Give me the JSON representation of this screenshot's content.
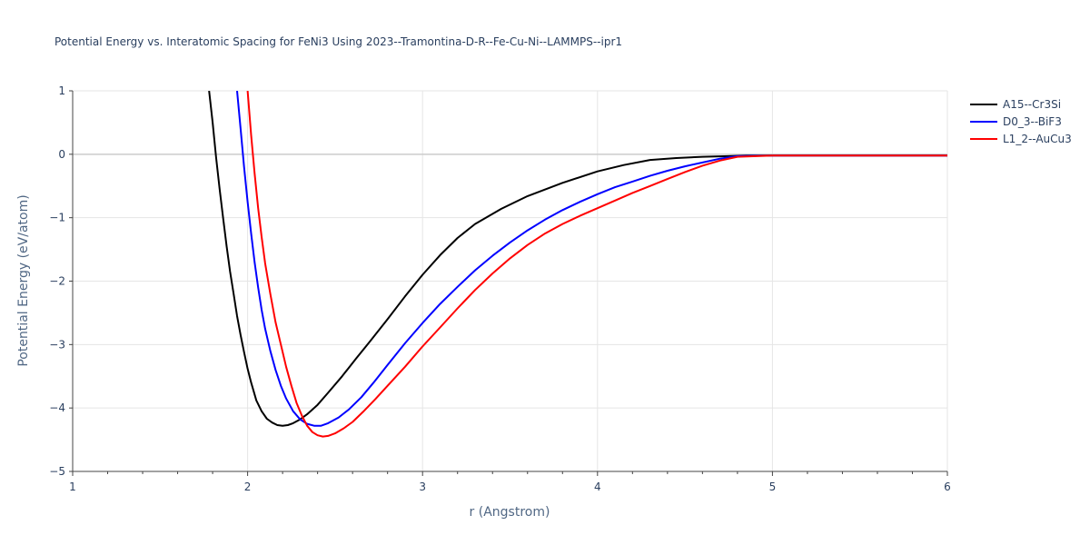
{
  "chart_data": {
    "type": "line",
    "title": "Potential Energy vs. Interatomic Spacing for FeNi3 Using 2023--Tramontina-D-R--Fe-Cu-Ni--LAMMPS--ipr1",
    "xlabel": "r (Angstrom)",
    "ylabel": "Potential Energy (eV/atom)",
    "xlim": [
      1,
      6
    ],
    "ylim": [
      -5,
      1
    ],
    "xticks": [
      1,
      2,
      3,
      4,
      5,
      6
    ],
    "xtick_labels": [
      "1",
      "2",
      "3",
      "4",
      "5",
      "6"
    ],
    "yticks": [
      -5,
      -4,
      -3,
      -2,
      -1,
      0,
      1
    ],
    "ytick_labels": [
      "−5",
      "−4",
      "−3",
      "−2",
      "−1",
      "0",
      "1"
    ],
    "grid": true,
    "legend_position": "top-right",
    "series": [
      {
        "name": "A15--Cr3Si",
        "color": "#000000",
        "x": [
          1.78,
          1.8,
          1.82,
          1.84,
          1.86,
          1.88,
          1.9,
          1.92,
          1.94,
          1.96,
          1.98,
          2.0,
          2.02,
          2.05,
          2.08,
          2.11,
          2.14,
          2.17,
          2.2,
          2.23,
          2.26,
          2.3,
          2.34,
          2.4,
          2.46,
          2.54,
          2.62,
          2.7,
          2.8,
          2.9,
          3.0,
          3.1,
          3.2,
          3.3,
          3.45,
          3.6,
          3.8,
          4.0,
          4.15,
          4.3,
          4.45,
          4.6,
          4.75,
          4.85,
          5.0,
          5.3,
          5.6,
          6.0
        ],
        "y": [
          1.0,
          0.5,
          -0.05,
          -0.55,
          -1.0,
          -1.45,
          -1.85,
          -2.2,
          -2.55,
          -2.85,
          -3.12,
          -3.38,
          -3.6,
          -3.88,
          -4.05,
          -4.17,
          -4.23,
          -4.27,
          -4.28,
          -4.27,
          -4.24,
          -4.18,
          -4.1,
          -3.95,
          -3.76,
          -3.5,
          -3.22,
          -2.95,
          -2.6,
          -2.24,
          -1.9,
          -1.59,
          -1.32,
          -1.1,
          -0.86,
          -0.66,
          -0.45,
          -0.27,
          -0.17,
          -0.09,
          -0.06,
          -0.04,
          -0.03,
          -0.02,
          -0.02,
          -0.02,
          -0.02,
          -0.02
        ]
      },
      {
        "name": "D0_3--BiF3",
        "color": "#0000ff",
        "x": [
          1.94,
          1.96,
          1.98,
          2.0,
          2.02,
          2.04,
          2.06,
          2.08,
          2.1,
          2.13,
          2.16,
          2.19,
          2.22,
          2.26,
          2.3,
          2.34,
          2.38,
          2.42,
          2.46,
          2.52,
          2.58,
          2.65,
          2.72,
          2.8,
          2.9,
          3.0,
          3.1,
          3.2,
          3.3,
          3.4,
          3.5,
          3.6,
          3.7,
          3.8,
          3.9,
          4.0,
          4.1,
          4.2,
          4.3,
          4.4,
          4.5,
          4.6,
          4.7,
          4.8,
          5.0,
          5.3,
          5.6,
          6.0
        ],
        "y": [
          1.0,
          0.4,
          -0.2,
          -0.75,
          -1.25,
          -1.7,
          -2.1,
          -2.45,
          -2.75,
          -3.1,
          -3.4,
          -3.65,
          -3.85,
          -4.05,
          -4.18,
          -4.25,
          -4.28,
          -4.28,
          -4.24,
          -4.15,
          -4.02,
          -3.83,
          -3.6,
          -3.32,
          -2.98,
          -2.66,
          -2.36,
          -2.09,
          -1.83,
          -1.6,
          -1.39,
          -1.2,
          -1.03,
          -0.88,
          -0.75,
          -0.63,
          -0.52,
          -0.43,
          -0.34,
          -0.26,
          -0.19,
          -0.13,
          -0.07,
          -0.03,
          -0.02,
          -0.02,
          -0.02,
          -0.02
        ]
      },
      {
        "name": "L1_2--AuCu3",
        "color": "#ff0000",
        "x": [
          2.0,
          2.02,
          2.04,
          2.06,
          2.08,
          2.1,
          2.13,
          2.16,
          2.19,
          2.22,
          2.25,
          2.28,
          2.31,
          2.34,
          2.37,
          2.4,
          2.43,
          2.46,
          2.5,
          2.55,
          2.6,
          2.66,
          2.73,
          2.8,
          2.9,
          3.0,
          3.1,
          3.2,
          3.3,
          3.4,
          3.5,
          3.6,
          3.7,
          3.8,
          3.9,
          4.0,
          4.1,
          4.2,
          4.3,
          4.4,
          4.5,
          4.6,
          4.7,
          4.8,
          5.0,
          5.3,
          5.6,
          6.0
        ],
        "y": [
          1.0,
          0.3,
          -0.3,
          -0.85,
          -1.3,
          -1.72,
          -2.2,
          -2.65,
          -3.0,
          -3.35,
          -3.65,
          -3.92,
          -4.12,
          -4.28,
          -4.38,
          -4.43,
          -4.45,
          -4.44,
          -4.4,
          -4.32,
          -4.22,
          -4.06,
          -3.86,
          -3.65,
          -3.35,
          -3.03,
          -2.73,
          -2.43,
          -2.14,
          -1.88,
          -1.64,
          -1.43,
          -1.25,
          -1.1,
          -0.97,
          -0.85,
          -0.73,
          -0.61,
          -0.5,
          -0.39,
          -0.28,
          -0.18,
          -0.1,
          -0.04,
          -0.02,
          -0.02,
          -0.02,
          -0.02
        ]
      }
    ]
  }
}
